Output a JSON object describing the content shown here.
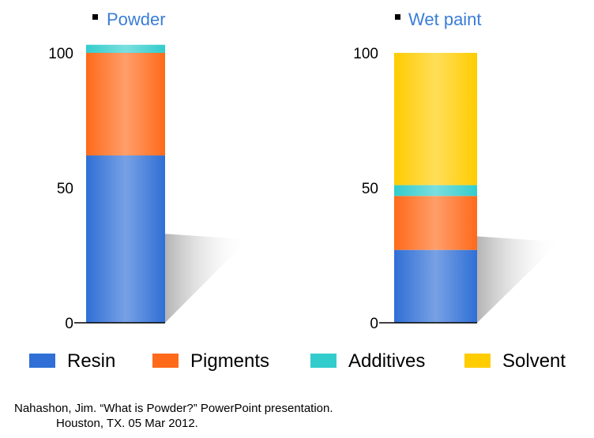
{
  "chart_data": [
    {
      "type": "bar",
      "stacked": true,
      "title": "Powder",
      "categories": [
        "Powder"
      ],
      "ylim": [
        0,
        100
      ],
      "yticks": [
        "0",
        "50",
        "100"
      ],
      "series": [
        {
          "name": "Resin",
          "values": [
            62
          ]
        },
        {
          "name": "Pigments",
          "values": [
            38
          ]
        },
        {
          "name": "Additives",
          "values": [
            3
          ]
        },
        {
          "name": "Solvent",
          "values": [
            0
          ]
        }
      ]
    },
    {
      "type": "bar",
      "stacked": true,
      "title": "Wet paint",
      "categories": [
        "Wet paint"
      ],
      "ylim": [
        0,
        100
      ],
      "yticks": [
        "0",
        "50",
        "100"
      ],
      "series": [
        {
          "name": "Resin",
          "values": [
            27
          ]
        },
        {
          "name": "Pigments",
          "values": [
            20
          ]
        },
        {
          "name": "Additives",
          "values": [
            4
          ]
        },
        {
          "name": "Solvent",
          "values": [
            49
          ]
        }
      ]
    }
  ],
  "legend": {
    "placement": "bottom",
    "items": [
      {
        "label": "Resin",
        "color": "#2f6fd6"
      },
      {
        "label": "Pigments",
        "color": "#ff6a1a"
      },
      {
        "label": "Additives",
        "color": "#33cccc"
      },
      {
        "label": "Solvent",
        "color": "#ffcc00"
      }
    ]
  },
  "source": {
    "line1": "Nahashon, Jim.  “What is Powder?” PowerPoint presentation.",
    "line2": "Houston, TX. 05 Mar 2012."
  }
}
